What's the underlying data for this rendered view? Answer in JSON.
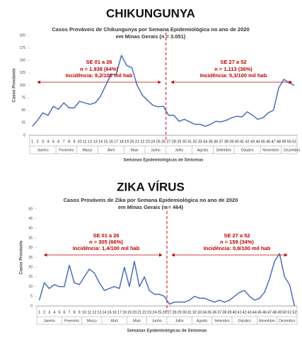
{
  "chart_data": [
    {
      "type": "line",
      "title": "CHIKUNGUNYA",
      "subtitle": [
        "Casos Prováveis de Chikungunya por Semana Epidemiológica no ano de 2020",
        "em  Minas Gerais (n = 3.051)"
      ],
      "y_label": "Casos Prováveis",
      "x_label": "Semanas Epidemiológicas de Sintomas",
      "categories": [
        "1",
        "2",
        "3",
        "4",
        "5",
        "6",
        "7",
        "8",
        "9",
        "10",
        "11",
        "12",
        "13",
        "14",
        "15",
        "16",
        "17",
        "18",
        "19",
        "20",
        "21",
        "22",
        "23",
        "24",
        "25",
        "26",
        "27",
        "28",
        "29",
        "30",
        "31",
        "32",
        "33",
        "34",
        "35",
        "36",
        "37",
        "38",
        "39",
        "40",
        "41",
        "42",
        "43",
        "44",
        "45",
        "46",
        "47",
        "48",
        "49",
        "50",
        "51"
      ],
      "values": [
        18,
        30,
        45,
        40,
        58,
        52,
        65,
        55,
        55,
        68,
        65,
        62,
        65,
        78,
        100,
        122,
        122,
        160,
        140,
        135,
        100,
        80,
        70,
        60,
        57,
        58,
        40,
        40,
        28,
        32,
        27,
        22,
        22,
        18,
        22,
        28,
        27,
        30,
        35,
        38,
        37,
        47,
        40,
        32,
        35,
        45,
        50,
        95,
        112,
        105,
        100
      ],
      "color": "#4a6fb5",
      "ylim": [
        0,
        200
      ],
      "yticks": [
        0,
        25,
        50,
        75,
        100,
        125,
        150,
        175,
        200
      ],
      "months": [
        "Janeiro",
        "Fevereiro",
        "Março",
        "Abril",
        "Maio",
        "Junho",
        "Julho",
        "Agosto",
        "Setembro",
        "Outubro",
        "Novembro",
        "Dezembro"
      ],
      "annotations": [
        [
          "SE 01 a 26",
          "n = 1.938 (64%)",
          "Incidência: 9,2/100 mil hab"
        ],
        [
          "SE 27 a 52",
          "n = 1.113 (36%)",
          "Incidência: 5,3/100 mil hab"
        ]
      ]
    },
    {
      "type": "line",
      "title": "ZIKA VÍRUS",
      "subtitle": [
        "Casos Prováveis de Zika por Semana Epidemiológica no ano de 2020",
        "em  Minas Gerais (n = 464)"
      ],
      "y_label": "Casos Prováveis",
      "x_label": "Semanas Epidemiológicas de Sintomas",
      "categories": [
        "1",
        "2",
        "3",
        "4",
        "5",
        "6",
        "7",
        "8",
        "9",
        "10",
        "11",
        "12",
        "13",
        "14",
        "15",
        "16",
        "17",
        "18",
        "19",
        "20",
        "21",
        "22",
        "23",
        "24",
        "25",
        "26",
        "27",
        "28",
        "29",
        "30",
        "31",
        "32",
        "33",
        "34",
        "35",
        "36",
        "37",
        "38",
        "39",
        "40",
        "41",
        "42",
        "43",
        "44",
        "45",
        "46",
        "47",
        "48",
        "49",
        "50",
        "51",
        "52"
      ],
      "values": [
        3,
        12,
        9,
        11,
        10,
        10,
        21,
        12,
        11,
        15,
        19,
        17,
        12,
        8,
        9,
        10,
        9,
        20,
        10,
        23,
        10,
        15,
        8,
        6,
        6,
        5,
        1,
        2,
        2,
        2,
        3,
        5,
        4,
        4,
        3,
        2,
        3,
        2,
        3,
        5,
        7,
        8,
        5,
        3,
        4,
        7,
        14,
        23,
        27,
        15,
        11,
        0
      ],
      "color": "#4a6fb5",
      "ylim": [
        0,
        50
      ],
      "yticks": [
        0,
        5,
        10,
        15,
        20,
        25,
        30,
        35,
        40,
        45,
        50
      ],
      "months": [
        "Janeiro",
        "Fevereiro",
        "Março",
        "Abril",
        "Maio",
        "Junho",
        "Julho",
        "Agosto",
        "Setembro",
        "Outubro",
        "Novembro",
        "Dezembro"
      ],
      "annotations": [
        [
          "SE 01 a 26",
          "n = 305 (66%)",
          "Incidência: 1,4/100 mil hab"
        ],
        [
          "SE 27 a 52",
          "n = 159 (34%)",
          "Incidência: 0,8/100 mil hab"
        ]
      ]
    }
  ]
}
